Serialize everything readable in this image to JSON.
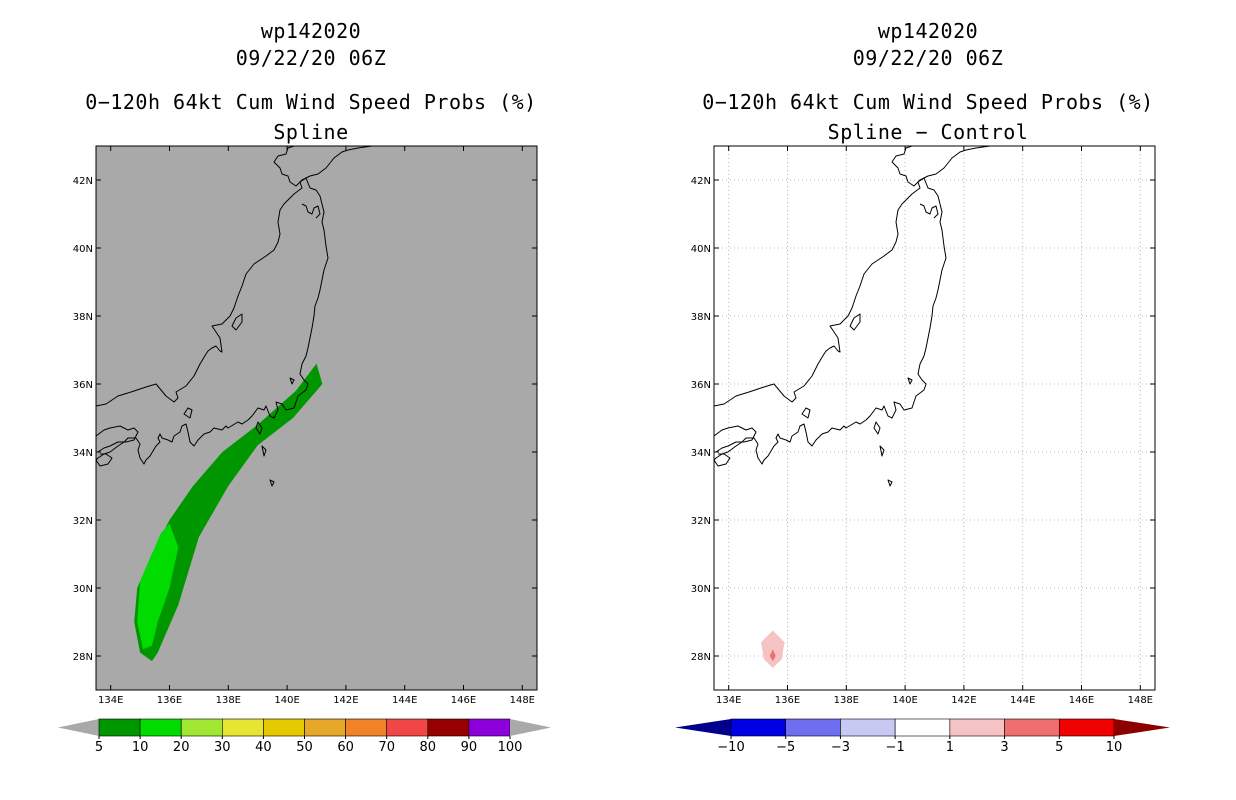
{
  "chart_data": [
    {
      "type": "heatmap",
      "panel": "left",
      "storm_id": "wp142020",
      "datetime": "09/22/20 06Z",
      "title": "0−120h 64kt Cum Wind Speed Probs (%)",
      "subtitle": "Spline",
      "x_ticks": [
        "134E",
        "136E",
        "138E",
        "140E",
        "142E",
        "144E",
        "146E",
        "148E"
      ],
      "y_ticks": [
        "28N",
        "30N",
        "32N",
        "34N",
        "36N",
        "38N",
        "40N",
        "42N"
      ],
      "xlim": [
        133.5,
        148.5
      ],
      "ylim": [
        27,
        43
      ],
      "grid": false,
      "background_color": "#a9a9a9",
      "colorbar": {
        "labels": [
          "5",
          "10",
          "20",
          "30",
          "40",
          "50",
          "60",
          "70",
          "80",
          "90",
          "100"
        ],
        "colors": [
          "#009600",
          "#00dc00",
          "#a0e632",
          "#e6e632",
          "#e6c800",
          "#e6a828",
          "#f08228",
          "#f04646",
          "#960000",
          "#8c00dc"
        ],
        "under_color": "#a9a9a9",
        "over_color": "#a9a9a9"
      },
      "regions": [
        {
          "range": "5-10",
          "color": "#009600",
          "outline": [
            [
              141.0,
              36.6
            ],
            [
              141.2,
              36.0
            ],
            [
              140.2,
              35.0
            ],
            [
              139.0,
              34.2
            ],
            [
              138.0,
              33.0
            ],
            [
              137.0,
              31.5
            ],
            [
              136.3,
              29.5
            ],
            [
              135.6,
              28.1
            ],
            [
              135.4,
              27.85
            ],
            [
              135.0,
              28.1
            ],
            [
              134.8,
              29.0
            ],
            [
              134.9,
              30.0
            ],
            [
              135.4,
              31.0
            ],
            [
              136.0,
              32.0
            ],
            [
              136.8,
              33.0
            ],
            [
              137.8,
              34.0
            ],
            [
              139.0,
              34.8
            ],
            [
              140.3,
              35.8
            ]
          ]
        },
        {
          "range": "10-20",
          "color": "#00dc00",
          "outline": [
            [
              136.0,
              31.9
            ],
            [
              136.3,
              31.2
            ],
            [
              136.0,
              30.0
            ],
            [
              135.6,
              29.0
            ],
            [
              135.4,
              28.3
            ],
            [
              135.1,
              28.2
            ],
            [
              134.9,
              29.0
            ],
            [
              135.0,
              30.2
            ],
            [
              135.4,
              31.0
            ],
            [
              135.7,
              31.6
            ]
          ]
        }
      ]
    },
    {
      "type": "heatmap",
      "panel": "right",
      "storm_id": "wp142020",
      "datetime": "09/22/20 06Z",
      "title": "0−120h 64kt Cum Wind Speed Probs (%)",
      "subtitle": "Spline − Control",
      "x_ticks": [
        "134E",
        "136E",
        "138E",
        "140E",
        "142E",
        "144E",
        "146E",
        "148E"
      ],
      "y_ticks": [
        "28N",
        "30N",
        "32N",
        "34N",
        "36N",
        "38N",
        "40N",
        "42N"
      ],
      "xlim": [
        133.5,
        148.5
      ],
      "ylim": [
        27,
        43
      ],
      "grid": true,
      "background_color": "#ffffff",
      "colorbar": {
        "labels": [
          "−10",
          "−5",
          "−3",
          "−1",
          "1",
          "3",
          "5",
          "10"
        ],
        "colors": [
          "#0000e6",
          "#6e6ef0",
          "#c8c8f5",
          "#ffffff",
          "#f5c3c3",
          "#f06e6e",
          "#f00000"
        ],
        "under_color": "#00008c",
        "over_color": "#8c0000"
      },
      "regions": [
        {
          "range": "1-3",
          "color": "#f5c3c3",
          "outline": [
            [
              135.5,
              28.75
            ],
            [
              135.9,
              28.4
            ],
            [
              135.8,
              27.9
            ],
            [
              135.5,
              27.65
            ],
            [
              135.2,
              27.9
            ],
            [
              135.1,
              28.4
            ]
          ]
        },
        {
          "range": "3-5",
          "color": "#f06e6e",
          "outline": [
            [
              135.5,
              28.2
            ],
            [
              135.6,
              28.0
            ],
            [
              135.5,
              27.85
            ],
            [
              135.4,
              28.0
            ]
          ]
        }
      ]
    }
  ]
}
